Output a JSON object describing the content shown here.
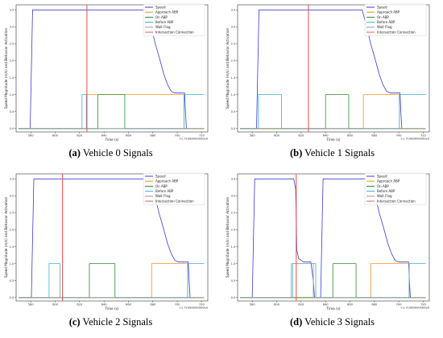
{
  "colors": {
    "Speed": "#3b3bd6",
    "Approach ABP": "#ff8c1a",
    "On ABP": "#2e8b2e",
    "Before ABP": "#36b0d6",
    "Wait Flag": "#9a9a9a",
    "Intersection Connection": "#ee5a5a"
  },
  "chart_data": [
    {
      "type": "line",
      "caption_label": "(a)",
      "caption_text": " Vehicle 0 Signals",
      "xlabel": "Time (s)",
      "ylabel": "Speed Magnitude (m/s) and Behavior Activation",
      "offset_text": "+1.71989000000e9",
      "xlim": [
        568,
        725
      ],
      "ylim": [
        -0.1,
        3.65
      ],
      "xticks": [
        580,
        600,
        620,
        640,
        660,
        680,
        700,
        720
      ],
      "yticks": [
        0.0,
        0.5,
        1.0,
        1.5,
        2.0,
        2.5,
        3.0,
        3.5
      ],
      "grid": false,
      "legend_location": "top-right",
      "series": [
        {
          "name": "Speed",
          "x": [
            570,
            579.5,
            581.5,
            675,
            678,
            682,
            686,
            689,
            692,
            695,
            698,
            702,
            706,
            706.7,
            707.5
          ],
          "y": [
            0,
            0,
            3.5,
            3.5,
            3.1,
            2.5,
            2.0,
            1.6,
            1.3,
            1.1,
            1.05,
            1.05,
            1.05,
            0.5,
            0
          ]
        },
        {
          "name": "Approach ABP",
          "x": [
            570,
            626,
            626,
            705.5,
            705.5,
            722
          ],
          "y": [
            0,
            0,
            1,
            1,
            0,
            0
          ]
        },
        {
          "name": "On ABP",
          "x": [
            570,
            635,
            635,
            657,
            657,
            722
          ],
          "y": [
            0,
            0,
            1,
            1,
            0,
            0
          ]
        },
        {
          "name": "Before ABP",
          "x": [
            570,
            622,
            622,
            625.5,
            625.5,
            705.5,
            705.5,
            722
          ],
          "y": [
            0,
            0,
            1,
            1,
            0,
            0,
            1,
            1
          ]
        },
        {
          "name": "Wait Flag",
          "x": [
            570,
            722
          ],
          "y": [
            0,
            0
          ]
        },
        {
          "name": "Intersection Connection",
          "x": [
            626,
            626
          ],
          "y": [
            -0.1,
            3.65
          ]
        }
      ]
    },
    {
      "type": "line",
      "caption_label": "(b)",
      "caption_text": " Vehicle 1 Signals",
      "xlabel": "Time (s)",
      "ylabel": "Speed Magnitude (m/s) and Behavior Activation",
      "offset_text": "+1.71989000000e9",
      "xlim": [
        568,
        725
      ],
      "ylim": [
        -0.1,
        3.65
      ],
      "xticks": [
        580,
        600,
        620,
        640,
        660,
        680,
        700,
        720
      ],
      "yticks": [
        0.0,
        0.5,
        1.0,
        1.5,
        2.0,
        2.5,
        3.0,
        3.5
      ],
      "grid": false,
      "legend_location": "top-right",
      "series": [
        {
          "name": "Speed",
          "x": [
            570,
            583.5,
            585.5,
            670,
            673,
            677,
            681,
            684,
            687,
            690,
            693,
            697,
            701,
            701.7,
            702.5
          ],
          "y": [
            0,
            0,
            3.5,
            3.5,
            3.1,
            2.5,
            2.0,
            1.6,
            1.3,
            1.1,
            1.05,
            1.05,
            1.05,
            0.5,
            0
          ]
        },
        {
          "name": "Approach ABP",
          "x": [
            570,
            671,
            671,
            700.5,
            700.5,
            722
          ],
          "y": [
            0,
            0,
            1,
            1,
            0,
            0
          ]
        },
        {
          "name": "On ABP",
          "x": [
            570,
            640,
            640,
            659,
            659,
            722
          ],
          "y": [
            0,
            0,
            1,
            1,
            0,
            0
          ]
        },
        {
          "name": "Before ABP",
          "x": [
            570,
            585,
            585,
            604,
            604,
            700.5,
            700.5,
            722
          ],
          "y": [
            0,
            0,
            1,
            1,
            0,
            0,
            1,
            1
          ]
        },
        {
          "name": "Wait Flag",
          "x": [
            570,
            722
          ],
          "y": [
            0,
            0
          ]
        },
        {
          "name": "Intersection Connection",
          "x": [
            626,
            626
          ],
          "y": [
            -0.1,
            3.65
          ]
        }
      ]
    },
    {
      "type": "line",
      "caption_label": "(c)",
      "caption_text": " Vehicle 2 Signals",
      "xlabel": "Time (s)",
      "ylabel": "Speed Magnitude (m/s) and Behavior Activation",
      "offset_text": "+1.71989000000e9",
      "xlim": [
        568,
        725
      ],
      "ylim": [
        -0.1,
        3.65
      ],
      "xticks": [
        580,
        600,
        620,
        640,
        660,
        680,
        700,
        720
      ],
      "yticks": [
        0.0,
        0.5,
        1.0,
        1.5,
        2.0,
        2.5,
        3.0,
        3.5
      ],
      "grid": false,
      "legend_location": "top-right",
      "series": [
        {
          "name": "Speed",
          "x": [
            570,
            580.5,
            582.5,
            678,
            681,
            685,
            689,
            692,
            695,
            698,
            701,
            705,
            709,
            709.7,
            710.5
          ],
          "y": [
            0,
            0,
            3.5,
            3.5,
            3.1,
            2.5,
            2.0,
            1.6,
            1.3,
            1.1,
            1.05,
            1.05,
            1.05,
            0.5,
            0
          ]
        },
        {
          "name": "Approach ABP",
          "x": [
            570,
            679,
            679,
            708.5,
            708.5,
            722
          ],
          "y": [
            0,
            0,
            1,
            1,
            0,
            0
          ]
        },
        {
          "name": "On ABP",
          "x": [
            570,
            628,
            628,
            649,
            649,
            722
          ],
          "y": [
            0,
            0,
            1,
            1,
            0,
            0
          ]
        },
        {
          "name": "Before ABP",
          "x": [
            570,
            595,
            595,
            604,
            604,
            708.5,
            708.5,
            722
          ],
          "y": [
            0,
            0,
            1,
            1,
            0,
            0,
            1,
            1
          ]
        },
        {
          "name": "Wait Flag",
          "x": [
            570,
            722
          ],
          "y": [
            0,
            0
          ]
        },
        {
          "name": "Intersection Connection",
          "x": [
            606,
            606
          ],
          "y": [
            -0.1,
            3.65
          ]
        }
      ]
    },
    {
      "type": "line",
      "caption_label": "(d)",
      "caption_text": " Vehicle 3 Signals",
      "xlabel": "Time (s)",
      "ylabel": "Speed Magnitude (m/s) and Behavior Activation",
      "offset_text": "+1.71989000000e9",
      "xlim": [
        568,
        725
      ],
      "ylim": [
        -0.1,
        3.65
      ],
      "xticks": [
        580,
        600,
        620,
        640,
        660,
        680,
        700,
        720
      ],
      "yticks": [
        0.0,
        0.5,
        1.0,
        1.5,
        2.0,
        2.5,
        3.0,
        3.5
      ],
      "grid": false,
      "legend_location": "top-right",
      "series": [
        {
          "name": "Speed",
          "x": [
            570,
            580,
            582,
            614,
            615.5,
            616.5,
            618,
            622,
            628,
            630,
            631,
            636,
            638,
            677,
            680,
            684,
            688,
            691,
            694,
            697,
            700,
            704,
            708,
            708.7,
            709.5
          ],
          "y": [
            0,
            0,
            3.5,
            3.5,
            3.2,
            1.4,
            1.15,
            1.05,
            1.05,
            0.5,
            0,
            0,
            3.5,
            3.5,
            3.1,
            2.5,
            2.0,
            1.6,
            1.3,
            1.1,
            1.05,
            1.05,
            1.05,
            0.5,
            0
          ]
        },
        {
          "name": "Approach ABP",
          "x": [
            570,
            677,
            677,
            708.5,
            708.5,
            722
          ],
          "y": [
            0,
            0,
            1,
            1,
            0,
            0
          ]
        },
        {
          "name": "On ABP",
          "x": [
            570,
            646,
            646,
            665,
            665,
            722
          ],
          "y": [
            0,
            0,
            1,
            1,
            0,
            0
          ]
        },
        {
          "name": "Before ABP",
          "x": [
            570,
            613,
            613,
            632,
            632,
            638,
            638,
            708.5,
            708.5,
            722
          ],
          "y": [
            0,
            0,
            1,
            1,
            0,
            0,
            0,
            0,
            1,
            1
          ]
        },
        {
          "name": "Wait Flag",
          "x": [
            570,
            612,
            612,
            630,
            630,
            722
          ],
          "y": [
            0,
            0,
            1,
            1,
            0,
            0
          ]
        },
        {
          "name": "Intersection Connection",
          "x": [
            616,
            616
          ],
          "y": [
            -0.1,
            3.65
          ]
        }
      ]
    }
  ]
}
